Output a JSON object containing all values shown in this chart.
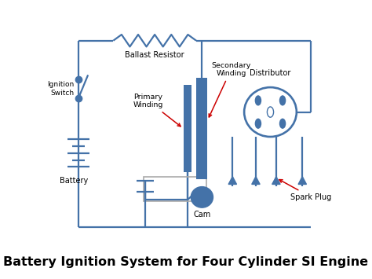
{
  "title": "Battery Ignition System for Four Cylinder SI Engine",
  "title_fontsize": 11.5,
  "bg_color": "#ffffff",
  "line_color": "#4472a8",
  "line_width": 1.6,
  "text_color": "#000000",
  "arrow_color": "#cc0000",
  "labels": {
    "ignition_switch": "Ignition\nSwitch",
    "ballast_resistor": "Ballast Resistor",
    "primary_winding": "Primary\nWinding",
    "secondary_winding": "Secondary\nWinding",
    "distributor": "Distributor",
    "battery": "Battery",
    "cam": "Cam",
    "spark_plug": "Spark Plug"
  }
}
